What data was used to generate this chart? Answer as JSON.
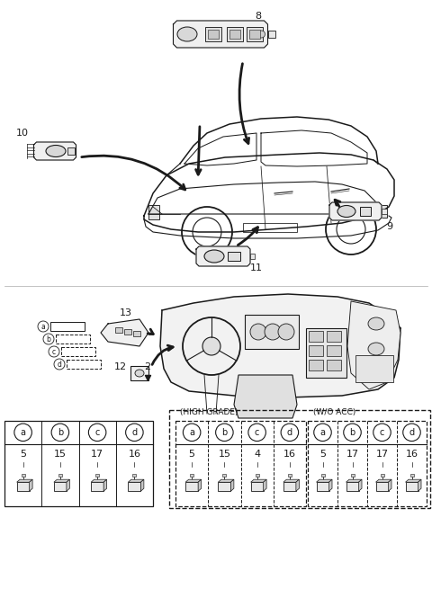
{
  "bg_color": "#ffffff",
  "line_color": "#1a1a1a",
  "fig_width": 4.8,
  "fig_height": 6.55,
  "dpi": 100,
  "table1": {
    "cols": [
      "a",
      "b",
      "c",
      "d"
    ],
    "nums": [
      "5",
      "15",
      "17",
      "16"
    ]
  },
  "table2": {
    "cols": [
      "a",
      "b",
      "c",
      "d"
    ],
    "nums": [
      "5",
      "15",
      "4",
      "16"
    ],
    "label": "(HIGH GRADE)"
  },
  "table3": {
    "cols": [
      "a",
      "b",
      "c",
      "d"
    ],
    "nums": [
      "5",
      "17",
      "17",
      "16"
    ],
    "label": "(W/O ACC)"
  }
}
